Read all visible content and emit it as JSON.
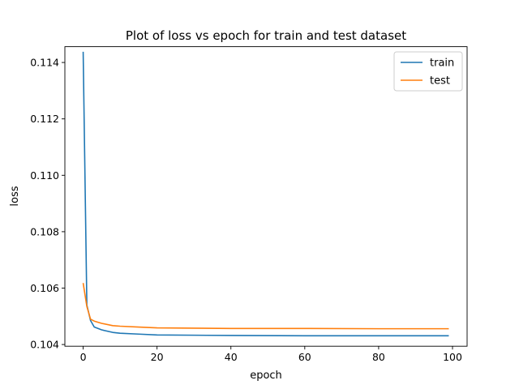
{
  "chart_data": {
    "type": "line",
    "title": "Plot of loss vs epoch for train and test dataset",
    "xlabel": "epoch",
    "ylabel": "loss",
    "xlim": [
      -4.95,
      103.95
    ],
    "ylim": [
      0.10394,
      0.11456
    ],
    "xticks": [
      0,
      20,
      40,
      60,
      80,
      100
    ],
    "xtick_labels": [
      "0",
      "20",
      "40",
      "60",
      "80",
      "100"
    ],
    "yticks": [
      0.104,
      0.106,
      0.108,
      0.11,
      0.112,
      0.114
    ],
    "ytick_labels": [
      "0.104",
      "0.106",
      "0.108",
      "0.110",
      "0.112",
      "0.114"
    ],
    "grid": false,
    "legend_position": "upper right",
    "series": [
      {
        "name": "train",
        "color": "#1f77b4",
        "x": [
          0,
          1,
          2,
          3,
          5,
          8,
          10,
          15,
          20,
          30,
          40,
          60,
          80,
          99
        ],
        "y": [
          0.11438,
          0.1054,
          0.10485,
          0.10462,
          0.10452,
          0.10443,
          0.1044,
          0.10437,
          0.10434,
          0.10433,
          0.10432,
          0.10431,
          0.10431,
          0.10431
        ]
      },
      {
        "name": "test",
        "color": "#ff7f0e",
        "x": [
          0,
          1,
          2,
          3,
          5,
          8,
          10,
          15,
          20,
          30,
          40,
          60,
          80,
          99
        ],
        "y": [
          0.10618,
          0.10535,
          0.1049,
          0.10483,
          0.10475,
          0.10467,
          0.10465,
          0.10462,
          0.10459,
          0.10458,
          0.10457,
          0.10457,
          0.10456,
          0.10456
        ]
      }
    ]
  }
}
